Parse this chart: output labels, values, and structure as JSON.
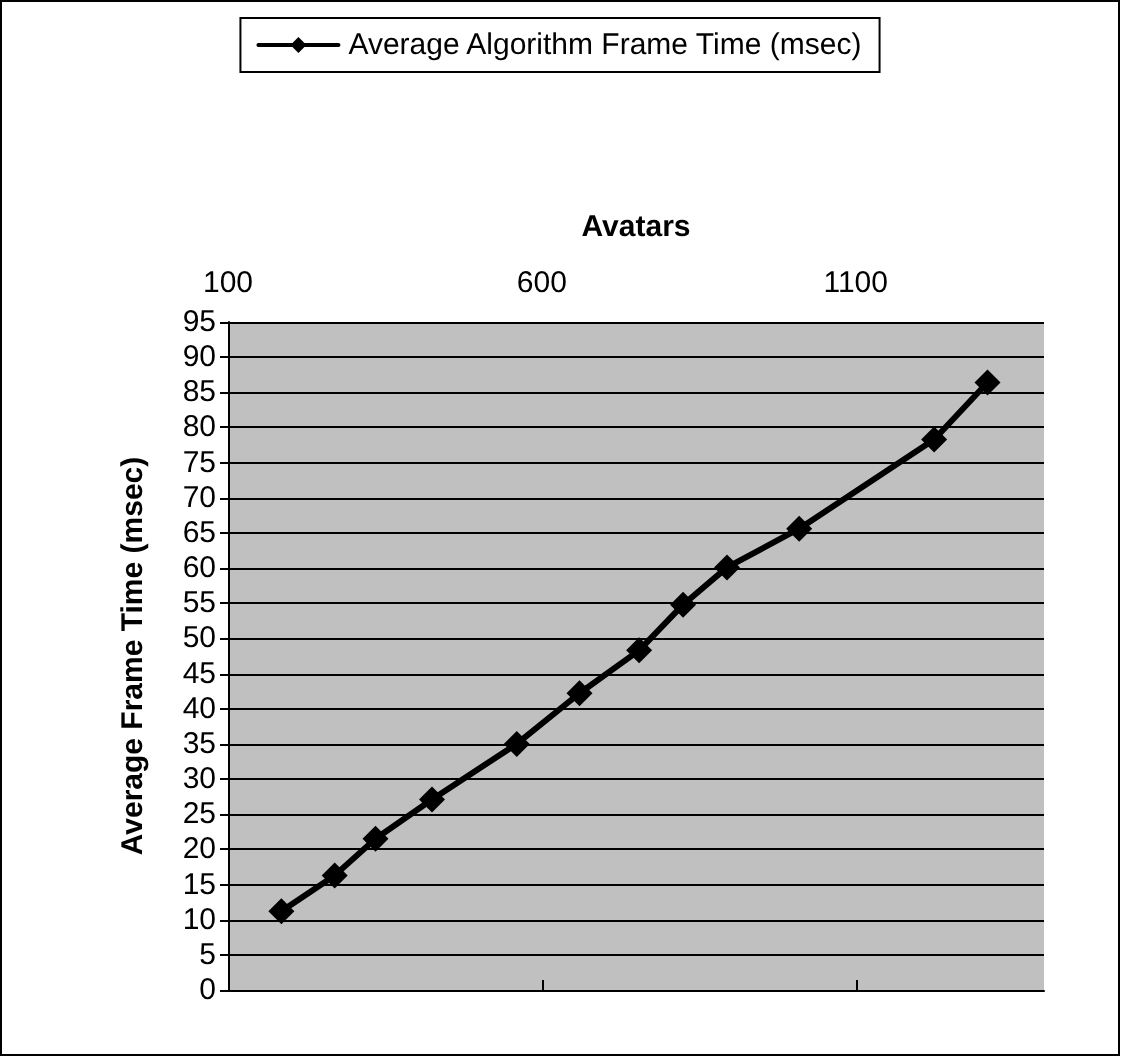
{
  "chart_data": {
    "type": "line",
    "xlabel": "Avatars",
    "ylabel": "Average Frame Time (msec)",
    "x": [
      185,
      270,
      335,
      425,
      560,
      660,
      755,
      825,
      895,
      1010,
      1225,
      1310
    ],
    "series": [
      {
        "name": "Average Algorithm Frame Time (msec)",
        "color": "#000000",
        "values": [
          11.2,
          16.3,
          21.5,
          27.1,
          35.0,
          42.2,
          48.3,
          54.8,
          60.1,
          65.6,
          78.3,
          86.4
        ]
      }
    ],
    "xlim": [
      100,
      1400
    ],
    "xticks": [
      100,
      600,
      1100
    ],
    "ylim": [
      0,
      95
    ],
    "yticks": [
      0,
      5,
      10,
      15,
      20,
      25,
      30,
      35,
      40,
      45,
      50,
      55,
      60,
      65,
      70,
      75,
      80,
      85,
      90,
      95
    ],
    "grid": "y",
    "legend": "top",
    "marker": "diamond",
    "line_style": "solid"
  }
}
